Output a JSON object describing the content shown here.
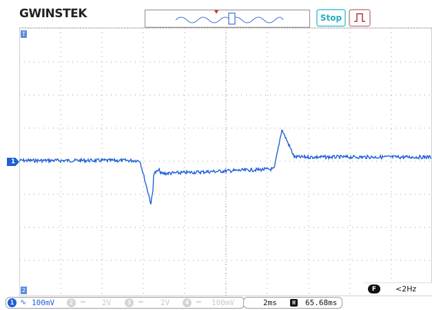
{
  "header": {
    "logo": "GWINSTEK",
    "run_state": "Stop",
    "overview_icon": "waveform-overview-icon",
    "trigger_icon": "rising-edge-trigger-icon"
  },
  "markers": {
    "channel_marker": "1",
    "top_tag": "T",
    "bottom_tag": "2"
  },
  "status": {
    "channels": [
      {
        "num": "1",
        "coupling": "∿",
        "scale": "100mV",
        "active": true
      },
      {
        "num": "2",
        "coupling": "═",
        "scale": "2V",
        "active": false
      },
      {
        "num": "3",
        "coupling": "═",
        "scale": "2V",
        "active": false
      },
      {
        "num": "4",
        "coupling": "═",
        "scale": "100mV",
        "active": false
      }
    ],
    "timebase": "2ms",
    "h_icon": "H",
    "position": "65.68ms",
    "freq_icon": "F",
    "frequency": "<2Hz"
  },
  "colors": {
    "trace": "#1f5fd6",
    "grid_dots": "#9a9a9a",
    "stop_accent": "#28aac4"
  }
}
